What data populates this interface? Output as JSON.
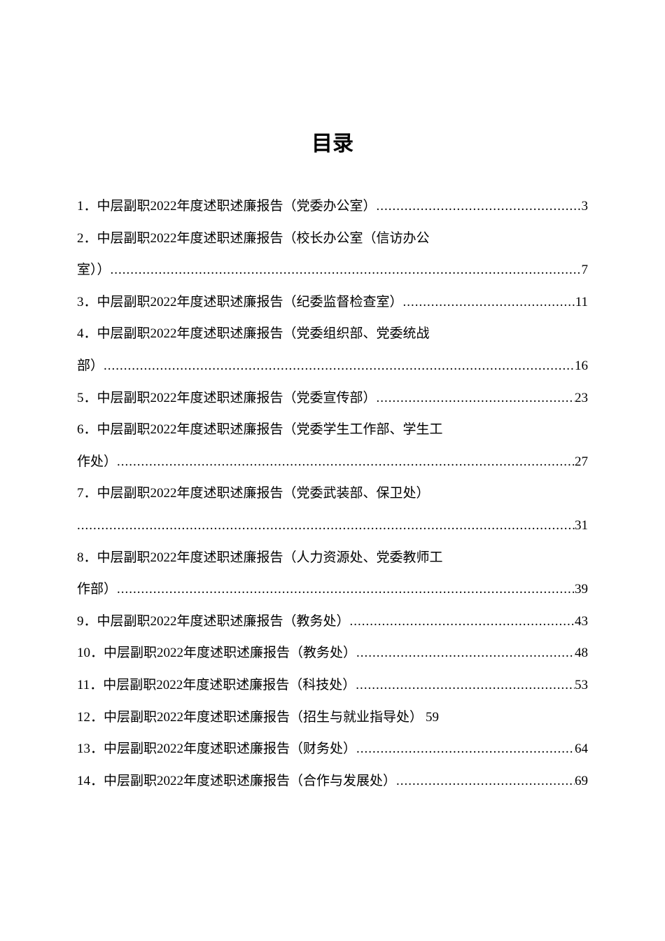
{
  "title": "目录",
  "entries": [
    {
      "num": "1．",
      "text": "中层副职2022年度述职述廉报告（党委办公室）",
      "page": "3",
      "multiline": false
    },
    {
      "num": "2．",
      "text": "中层副职2022年度述职述廉报告（校长办公室（信访办公",
      "continuation": "室））",
      "page": "7",
      "multiline": true
    },
    {
      "num": "3．",
      "text": "中层副职2022年度述职述廉报告（纪委监督检查室）",
      "page": "11",
      "multiline": false
    },
    {
      "num": "4．",
      "text": "中层副职2022年度述职述廉报告（党委组织部、党委统战",
      "continuation": "部）",
      "page": "16",
      "multiline": true
    },
    {
      "num": "5．",
      "text": "中层副职2022年度述职述廉报告（党委宣传部）",
      "page": "23",
      "multiline": false
    },
    {
      "num": "6．",
      "text": "中层副职2022年度述职述廉报告（党委学生工作部、学生工",
      "continuation": "作处）",
      "page": "27",
      "multiline": true
    },
    {
      "num": "7．",
      "text": "中层副职2022年度述职述廉报告（党委武装部、保卫处）",
      "continuation": "",
      "page": "31",
      "multiline": true
    },
    {
      "num": "8．",
      "text": "中层副职2022年度述职述廉报告（人力资源处、党委教师工",
      "continuation": "作部）",
      "page": "39",
      "multiline": true
    },
    {
      "num": "9．",
      "text": "中层副职2022年度述职述廉报告（教务处）",
      "page": "43",
      "multiline": false
    },
    {
      "num": "10．",
      "text": "中层副职2022年度述职述廉报告（教务处）",
      "page": "48",
      "multiline": false
    },
    {
      "num": "11．",
      "text": "中层副职2022年度述职述廉报告（科技处）",
      "page": "53",
      "multiline": false
    },
    {
      "num": "12．",
      "text": "中层副职2022年度述职述廉报告（招生与就业指导处）",
      "page": "59",
      "multiline": false,
      "tight": true
    },
    {
      "num": "13．",
      "text": "中层副职2022年度述职述廉报告（财务处）",
      "page": "64",
      "multiline": false
    },
    {
      "num": "14．",
      "text": "中层副职2022年度述职述廉报告（合作与发展处）",
      "page": "69",
      "multiline": false
    }
  ],
  "dot_char": "."
}
